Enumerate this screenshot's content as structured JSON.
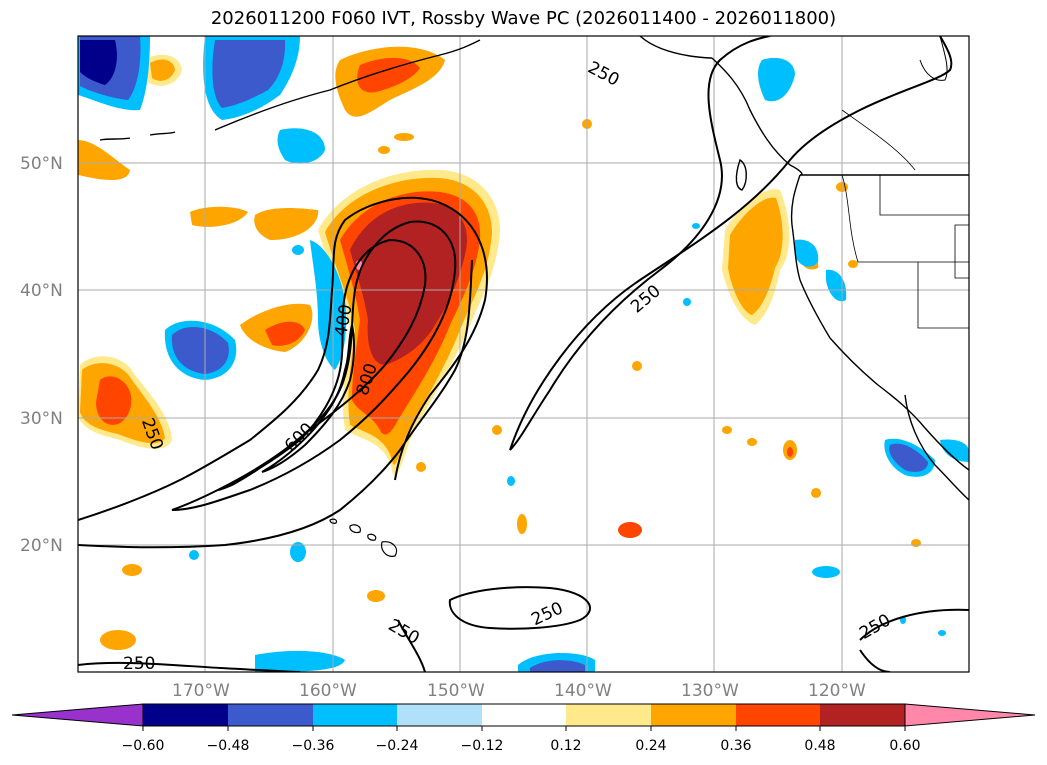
{
  "title": "2026011200 F060 IVT, Rossby Wave PC (2026011400 - 2026011800)",
  "map": {
    "lat_ticks": [
      "50°N",
      "40°N",
      "30°N",
      "20°N"
    ],
    "lon_ticks": [
      "170°W",
      "160°W",
      "150°W",
      "140°W",
      "130°W",
      "120°W"
    ],
    "extent": {
      "lon_min": -180,
      "lon_max": -110,
      "lat_min": 10,
      "lat_max": 60
    },
    "gridlines": true,
    "contour_labels": [
      "250",
      "250",
      "250",
      "250",
      "250",
      "250",
      "400",
      "600",
      "800",
      "250"
    ]
  },
  "colorbar": {
    "ticks": [
      "−0.60",
      "−0.48",
      "−0.36",
      "−0.24",
      "−0.12",
      "0.12",
      "0.24",
      "0.36",
      "0.48",
      "0.60"
    ],
    "colors": [
      "#9932cc",
      "#00008b",
      "#3c5acc",
      "#00bfff",
      "#b0e0fa",
      "#ffffff",
      "#ffe98a",
      "#ffa500",
      "#ff4500",
      "#b22222",
      "#ff88aa"
    ],
    "extend": "both"
  },
  "colors": {
    "frame": "#000000",
    "grid": "#aaaaaa",
    "tick_text": "#808080"
  }
}
